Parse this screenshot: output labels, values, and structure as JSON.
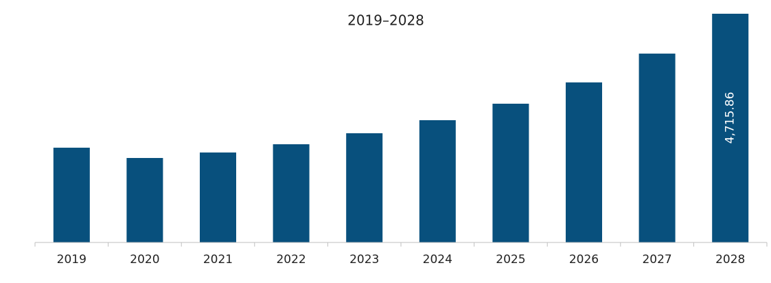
{
  "chart_data": {
    "type": "bar",
    "title": "2019–2028",
    "categories": [
      "2019",
      "2020",
      "2021",
      "2022",
      "2023",
      "2024",
      "2025",
      "2026",
      "2027",
      "2028"
    ],
    "values": [
      1954,
      1742,
      1855,
      2025,
      2252,
      2521,
      2861,
      3300,
      3894,
      4715.86
    ],
    "value_labels": [
      null,
      null,
      null,
      null,
      null,
      null,
      null,
      null,
      null,
      "4,715.86"
    ],
    "color": "#08507d"
  }
}
